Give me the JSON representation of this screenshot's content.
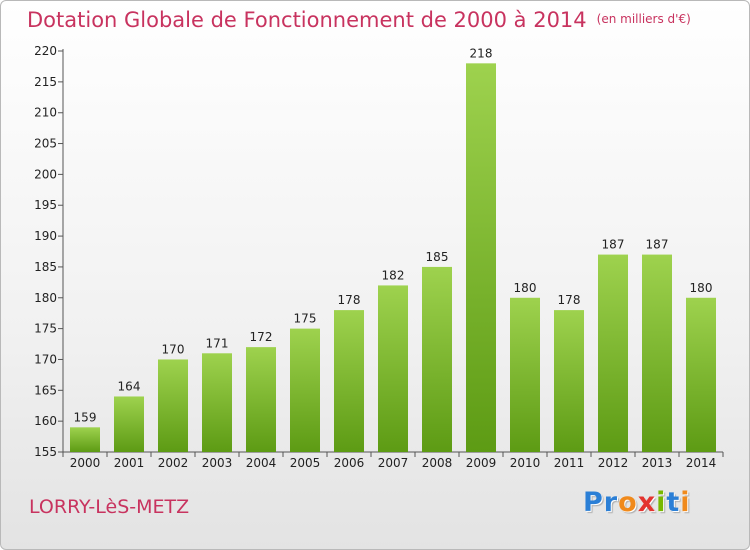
{
  "header": {
    "title": "Dotation Globale de Fonctionnement de 2000 à 2014",
    "unit": "(en milliers d'€)"
  },
  "footer": {
    "commune": "LORRY-LèS-METZ",
    "logo_letters": [
      {
        "ch": "P",
        "color": "#2b7fd6"
      },
      {
        "ch": "r",
        "color": "#2b7fd6"
      },
      {
        "ch": "o",
        "color": "#f08a1c"
      },
      {
        "ch": "x",
        "color": "#e3342f"
      },
      {
        "ch": "i",
        "color": "#78b800"
      },
      {
        "ch": "t",
        "color": "#2b7fd6"
      },
      {
        "ch": "i",
        "color": "#f08a1c"
      }
    ]
  },
  "colors": {
    "accent": "#c8335f",
    "bar_top": "#9ed24e",
    "bar_bottom": "#5d9b14",
    "axis": "#555555",
    "grid_tick": "#555555"
  },
  "chart_data": {
    "type": "bar",
    "title": "Dotation Globale de Fonctionnement de 2000 à 2014",
    "subtitle": "(en milliers d'€)",
    "categories": [
      "2000",
      "2001",
      "2002",
      "2003",
      "2004",
      "2005",
      "2006",
      "2007",
      "2008",
      "2009",
      "2010",
      "2011",
      "2012",
      "2013",
      "2014"
    ],
    "values": [
      159,
      164,
      170,
      171,
      172,
      175,
      178,
      182,
      185,
      218,
      180,
      178,
      187,
      187,
      180
    ],
    "ylim": [
      155,
      220
    ],
    "yticks": [
      155,
      160,
      165,
      170,
      175,
      180,
      185,
      190,
      195,
      200,
      205,
      210,
      215,
      220
    ],
    "xlabel": "",
    "ylabel": "",
    "grid": false,
    "legend": "none"
  }
}
